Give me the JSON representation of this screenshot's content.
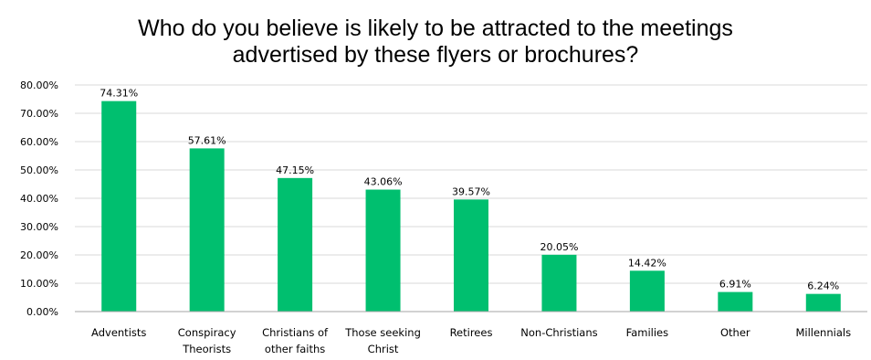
{
  "chart_data": {
    "type": "bar",
    "title_lines": [
      "Who do you believe is likely to be attracted to the meetings",
      "advertised by these flyers or brochures?"
    ],
    "categories": [
      [
        "Adventists"
      ],
      [
        "Conspiracy",
        "Theorists"
      ],
      [
        "Christians of",
        "other faiths"
      ],
      [
        "Those seeking",
        "Christ"
      ],
      [
        "Retirees"
      ],
      [
        "Non-Christians"
      ],
      [
        "Families"
      ],
      [
        "Other"
      ],
      [
        "Millennials"
      ]
    ],
    "values": [
      74.31,
      57.61,
      47.15,
      43.06,
      39.57,
      20.05,
      14.42,
      6.91,
      6.24
    ],
    "data_labels": [
      "74.31%",
      "57.61%",
      "47.15%",
      "43.06%",
      "39.57%",
      "20.05%",
      "14.42%",
      "6.91%",
      "6.24%"
    ],
    "y_ticks": [
      "0.00%",
      "10.00%",
      "20.00%",
      "30.00%",
      "40.00%",
      "50.00%",
      "60.00%",
      "70.00%",
      "80.00%"
    ],
    "ylim": [
      0,
      80
    ],
    "y_tick_step": 10,
    "grid": true,
    "legend": false,
    "colors": {
      "bar": "#00BF6F",
      "gridline": "#D9D9D9",
      "axis": "#A6A6A6"
    }
  }
}
